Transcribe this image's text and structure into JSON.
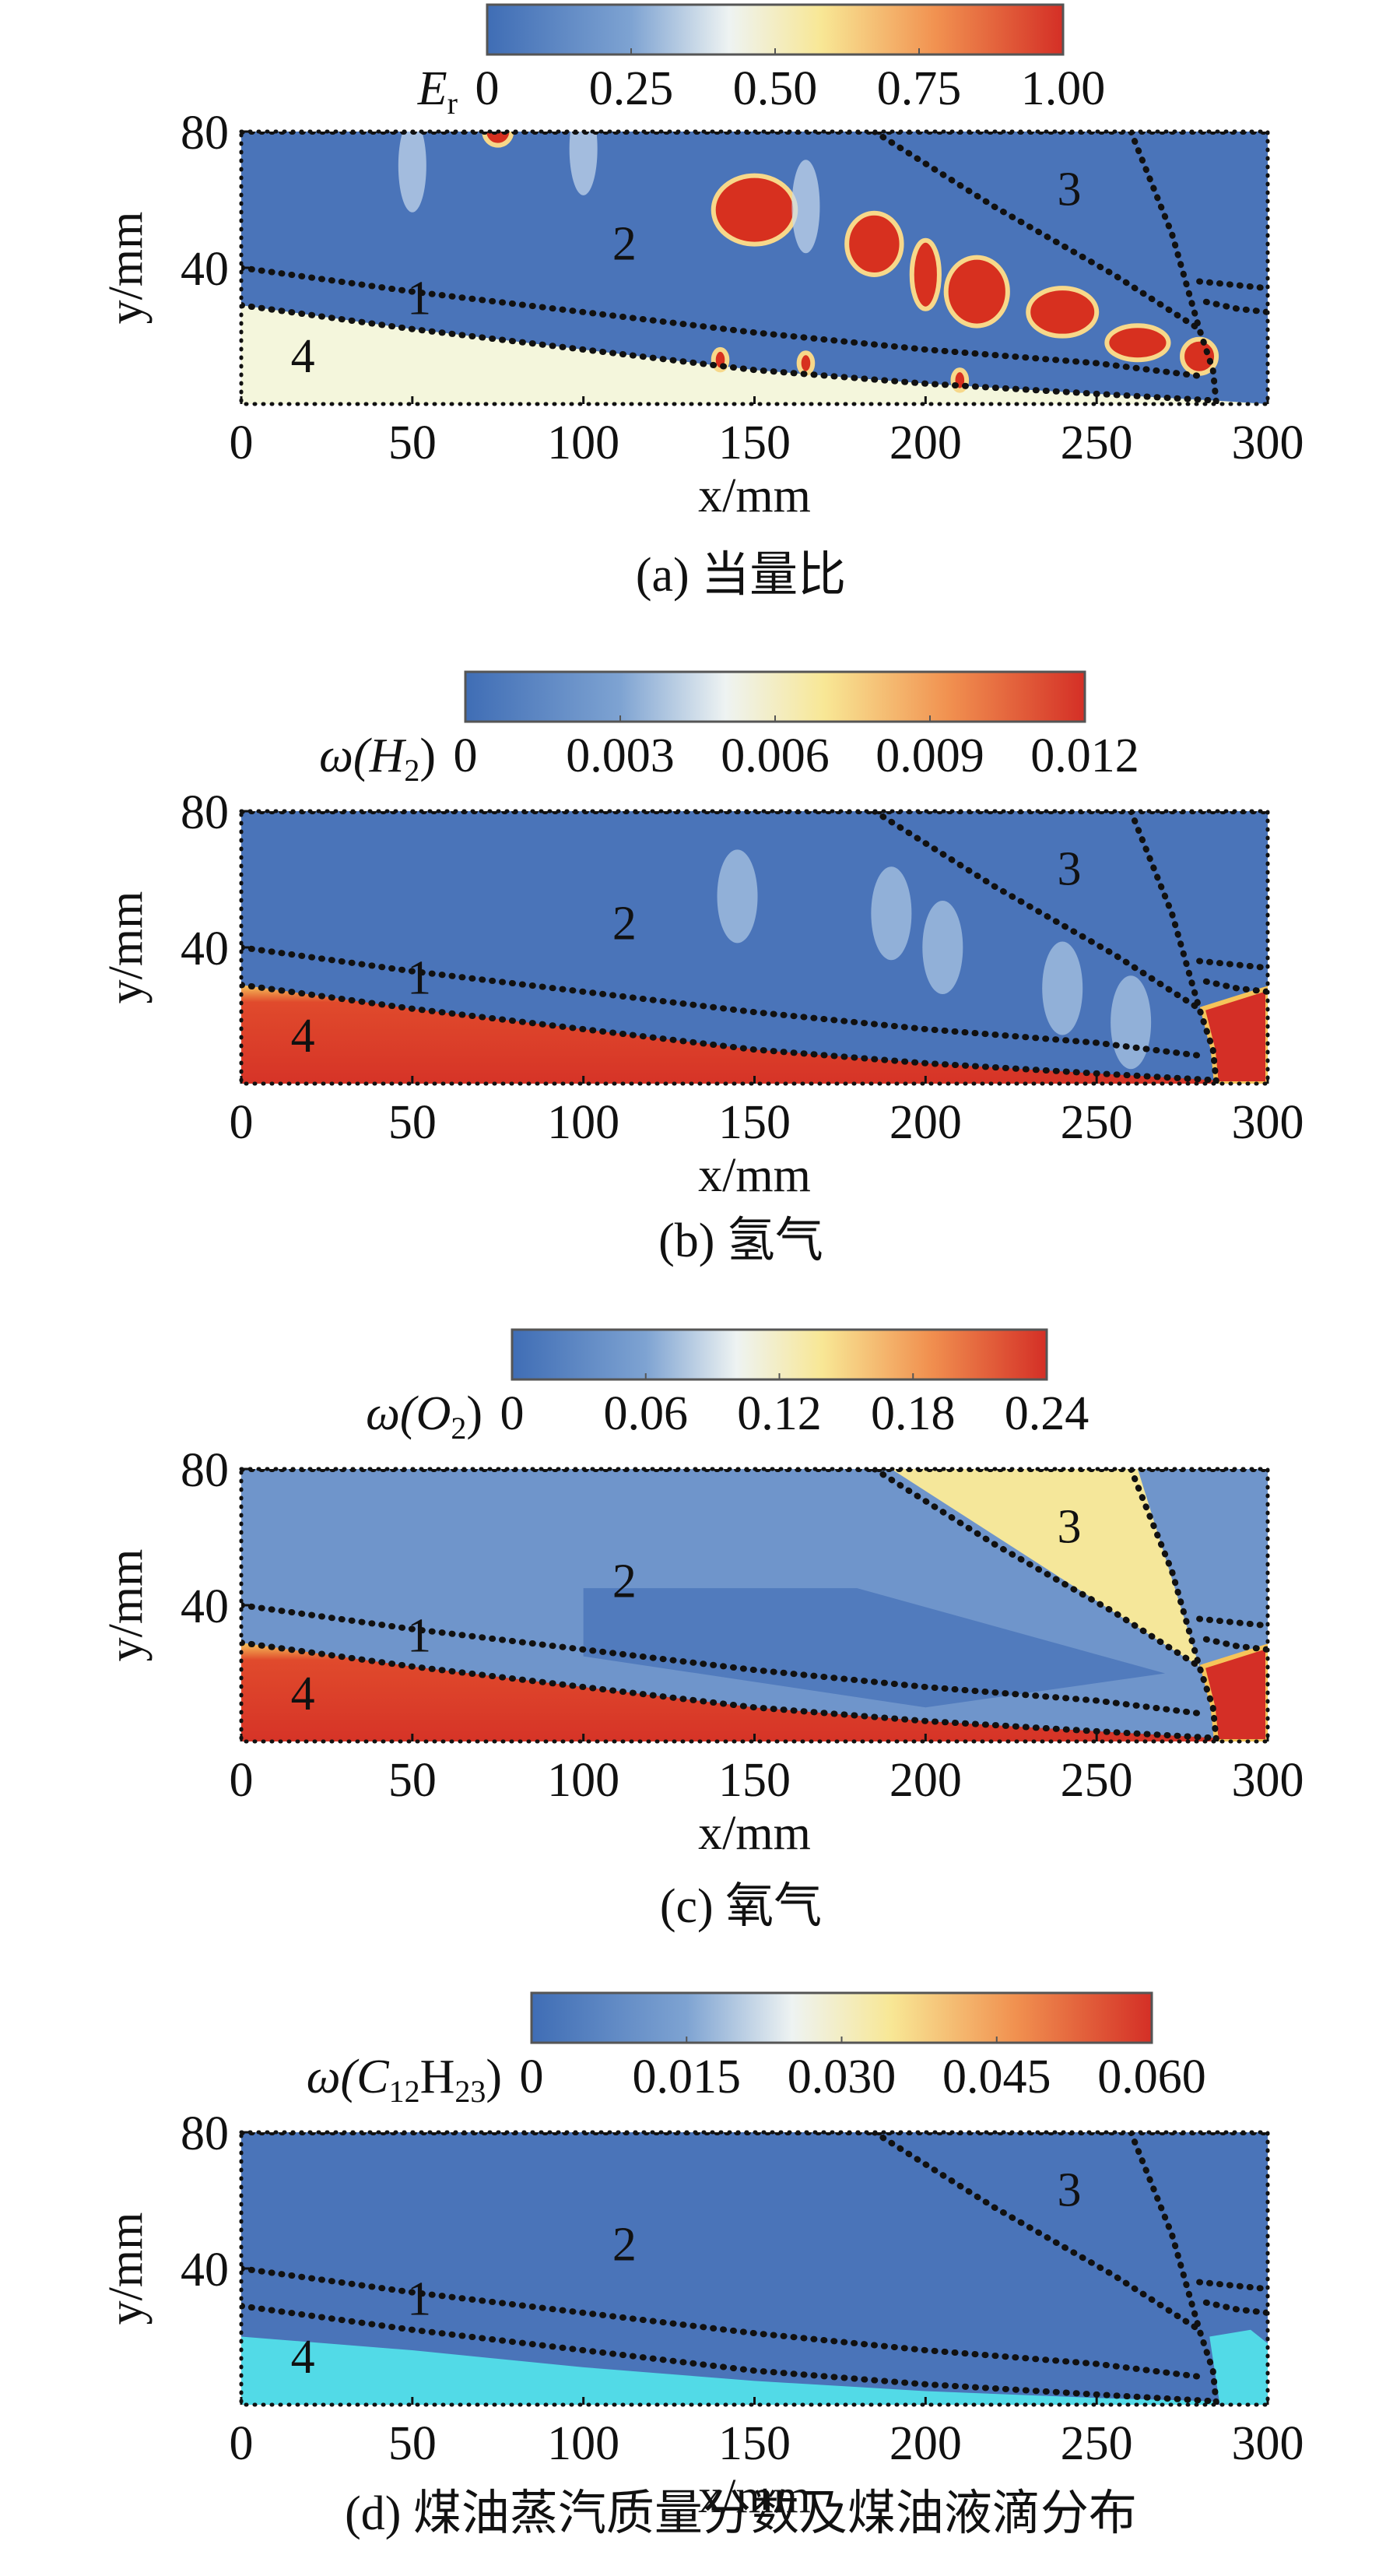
{
  "chart_data": [
    {
      "type": "contour",
      "colorbar_title": [
        {
          "text": "E"
        },
        {
          "text": "r",
          "sub": true
        }
      ],
      "clim": [
        0,
        1
      ],
      "cticks": [
        0,
        0.25,
        {
          "value": 0.5,
          "label": "0.50"
        },
        0.75,
        {
          "value": 1,
          "label": "1.00"
        }
      ],
      "xlim": [
        0,
        300
      ],
      "xticks": [
        0,
        50,
        100,
        150,
        200,
        250,
        300
      ],
      "ylim": [
        0,
        80
      ],
      "yticks": [
        40,
        80
      ],
      "xlabel": "x/mm",
      "ylabel": "y/mm",
      "annotations": [
        "1",
        "2",
        "3",
        "4"
      ],
      "caption": "(a) 当量比"
    },
    {
      "type": "contour",
      "colorbar_title": [
        {
          "text": "ω(H"
        },
        {
          "text": "2",
          "sub": true
        },
        {
          "text": ")"
        }
      ],
      "clim": [
        0,
        0.012
      ],
      "cticks": [
        0,
        0.003,
        0.006,
        0.009,
        0.012
      ],
      "xlim": [
        0,
        300
      ],
      "xticks": [
        0,
        50,
        100,
        150,
        200,
        250,
        300
      ],
      "ylim": [
        0,
        80
      ],
      "yticks": [
        40,
        80
      ],
      "xlabel": "x/mm",
      "ylabel": "y/mm",
      "annotations": [
        "1",
        "2",
        "3",
        "4"
      ],
      "caption": "(b) 氢气"
    },
    {
      "type": "contour",
      "colorbar_title": [
        {
          "text": "ω(O"
        },
        {
          "text": "2",
          "sub": true
        },
        {
          "text": ")"
        }
      ],
      "clim": [
        0,
        0.24
      ],
      "cticks": [
        0,
        0.06,
        0.12,
        0.18,
        0.24
      ],
      "xlim": [
        0,
        300
      ],
      "xticks": [
        0,
        50,
        100,
        150,
        200,
        250,
        300
      ],
      "ylim": [
        0,
        80
      ],
      "yticks": [
        40,
        80
      ],
      "xlabel": "x/mm",
      "ylabel": "y/mm",
      "annotations": [
        "1",
        "2",
        "3",
        "4"
      ],
      "caption": "(c) 氧气"
    },
    {
      "type": "contour",
      "colorbar_title": [
        {
          "text": "ω(C"
        },
        {
          "text": "12",
          "sub": true
        },
        {
          "text": "H"
        },
        {
          "text": "23",
          "sub": true
        },
        {
          "text": ")"
        }
      ],
      "clim": [
        0,
        0.06
      ],
      "cticks": [
        0,
        0.015,
        {
          "value": 0.03,
          "label": "0.030"
        },
        0.045,
        {
          "value": 0.06,
          "label": "0.060"
        }
      ],
      "xlim": [
        0,
        300
      ],
      "xticks": [
        0,
        50,
        100,
        150,
        200,
        250,
        300
      ],
      "ylim": [
        0,
        80
      ],
      "yticks": [
        40,
        80
      ],
      "xlabel": "x/mm",
      "ylabel": "y/mm",
      "annotations": [
        "1",
        "2",
        "3",
        "4"
      ],
      "caption": "(d) 煤油蒸汽质量分数及煤油液滴分布"
    }
  ]
}
